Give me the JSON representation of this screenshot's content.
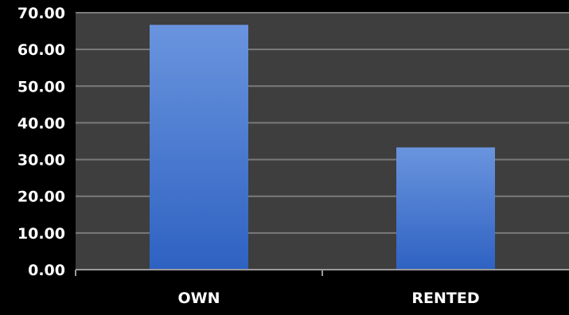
{
  "chart_data": {
    "type": "bar",
    "title": "",
    "xlabel": "",
    "ylabel": "",
    "categories": [
      "OWN",
      "RENTED"
    ],
    "series": [
      {
        "values": [
          66.7,
          33.3
        ]
      }
    ],
    "ylim": [
      0,
      70
    ],
    "yticks": [
      "0.00",
      "10.00",
      "20.00",
      "30.00",
      "40.00",
      "50.00",
      "60.00",
      "70.00"
    ],
    "grid": true,
    "legend": "none",
    "colors": {
      "page_background": "#000000",
      "plot_background": "#3e3e3e",
      "gridline": "#7a7a7a",
      "axis_line": "#9a9a9a",
      "text": "#ffffff",
      "bar_top": "#6a94de",
      "bar_bottom": "#2e62c2"
    }
  }
}
